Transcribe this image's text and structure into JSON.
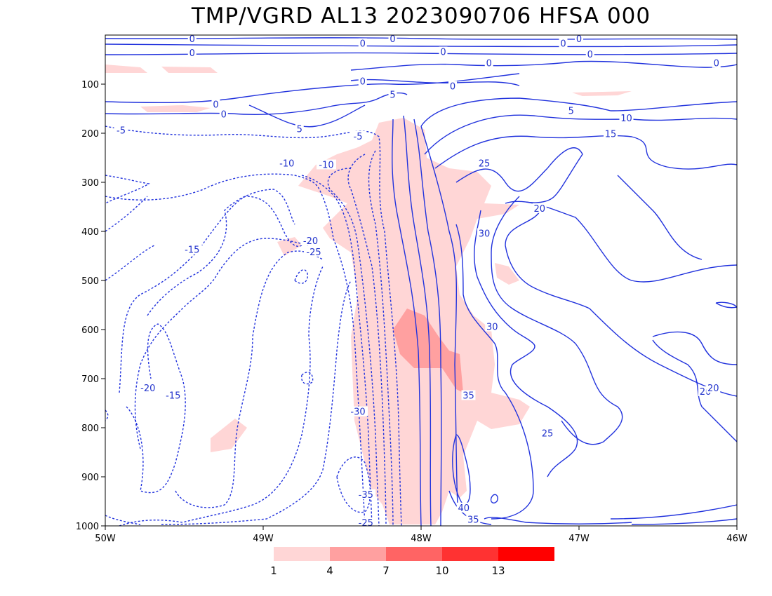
{
  "chart_data": {
    "type": "heatmap",
    "title": "TMP/VGRD AL13 2023090706 HFSA 000",
    "x_axis": {
      "ticks": [
        "50W",
        "49W",
        "48W",
        "47W",
        "46W"
      ],
      "range": [
        -50,
        -46
      ]
    },
    "y_axis": {
      "ticks": [
        "100",
        "200",
        "300",
        "400",
        "500",
        "600",
        "700",
        "800",
        "900",
        "1000"
      ],
      "range": [
        0,
        1000
      ],
      "inverted": true
    },
    "colorbar": {
      "levels": [
        "1",
        "4",
        "7",
        "10",
        "13"
      ],
      "colors": [
        "#ffd6d6",
        "#ffa0a0",
        "#ff6464",
        "#ff3232",
        "#ff0000"
      ]
    },
    "contour_labels": [
      {
        "text": "0",
        "x": -49.45,
        "y": 3
      },
      {
        "text": "0",
        "x": -48.18,
        "y": 2
      },
      {
        "text": "0",
        "x": -47.0,
        "y": 2
      },
      {
        "text": "0",
        "x": -48.37,
        "y": 18
      },
      {
        "text": "0",
        "x": -47.1,
        "y": 18
      },
      {
        "text": "0",
        "x": -47.86,
        "y": 35
      },
      {
        "text": "0",
        "x": -49.45,
        "y": 37
      },
      {
        "text": "0",
        "x": -46.93,
        "y": 40
      },
      {
        "text": "0",
        "x": -47.57,
        "y": 58
      },
      {
        "text": "0",
        "x": -46.13,
        "y": 58
      },
      {
        "text": "0",
        "x": -48.37,
        "y": 95
      },
      {
        "text": "0",
        "x": -47.8,
        "y": 105
      },
      {
        "text": "5",
        "x": -48.18,
        "y": 122
      },
      {
        "text": "0",
        "x": -49.3,
        "y": 142
      },
      {
        "text": "0",
        "x": -49.25,
        "y": 162
      },
      {
        "text": "5",
        "x": -47.05,
        "y": 155
      },
      {
        "text": "10",
        "x": -46.7,
        "y": 170
      },
      {
        "text": "-5",
        "x": -49.9,
        "y": 195
      },
      {
        "text": "5",
        "x": -48.77,
        "y": 192
      },
      {
        "text": "15",
        "x": -46.8,
        "y": 202
      },
      {
        "text": "-5",
        "x": -48.4,
        "y": 207
      },
      {
        "text": "-10",
        "x": -48.85,
        "y": 262
      },
      {
        "text": "-10",
        "x": -48.6,
        "y": 265
      },
      {
        "text": "25",
        "x": -47.6,
        "y": 262
      },
      {
        "text": "20",
        "x": -47.25,
        "y": 354
      },
      {
        "text": "30",
        "x": -47.6,
        "y": 405
      },
      {
        "text": "-15",
        "x": -49.45,
        "y": 438
      },
      {
        "text": "-20",
        "x": -48.7,
        "y": 420
      },
      {
        "text": "-25",
        "x": -48.68,
        "y": 443
      },
      {
        "text": "30",
        "x": -47.55,
        "y": 595
      },
      {
        "text": "-20",
        "x": -49.73,
        "y": 720
      },
      {
        "text": "-15",
        "x": -49.57,
        "y": 735
      },
      {
        "text": "35",
        "x": -47.7,
        "y": 735
      },
      {
        "text": "-30",
        "x": -48.4,
        "y": 768
      },
      {
        "text": "25",
        "x": -47.2,
        "y": 812
      },
      {
        "text": "20",
        "x": -46.2,
        "y": 727
      },
      {
        "text": "20",
        "x": -46.15,
        "y": 720
      },
      {
        "text": "-35",
        "x": -48.35,
        "y": 937
      },
      {
        "text": "40",
        "x": -47.73,
        "y": 964
      },
      {
        "text": "35",
        "x": -47.67,
        "y": 988
      },
      {
        "text": "-25",
        "x": -48.35,
        "y": 1000
      }
    ]
  }
}
